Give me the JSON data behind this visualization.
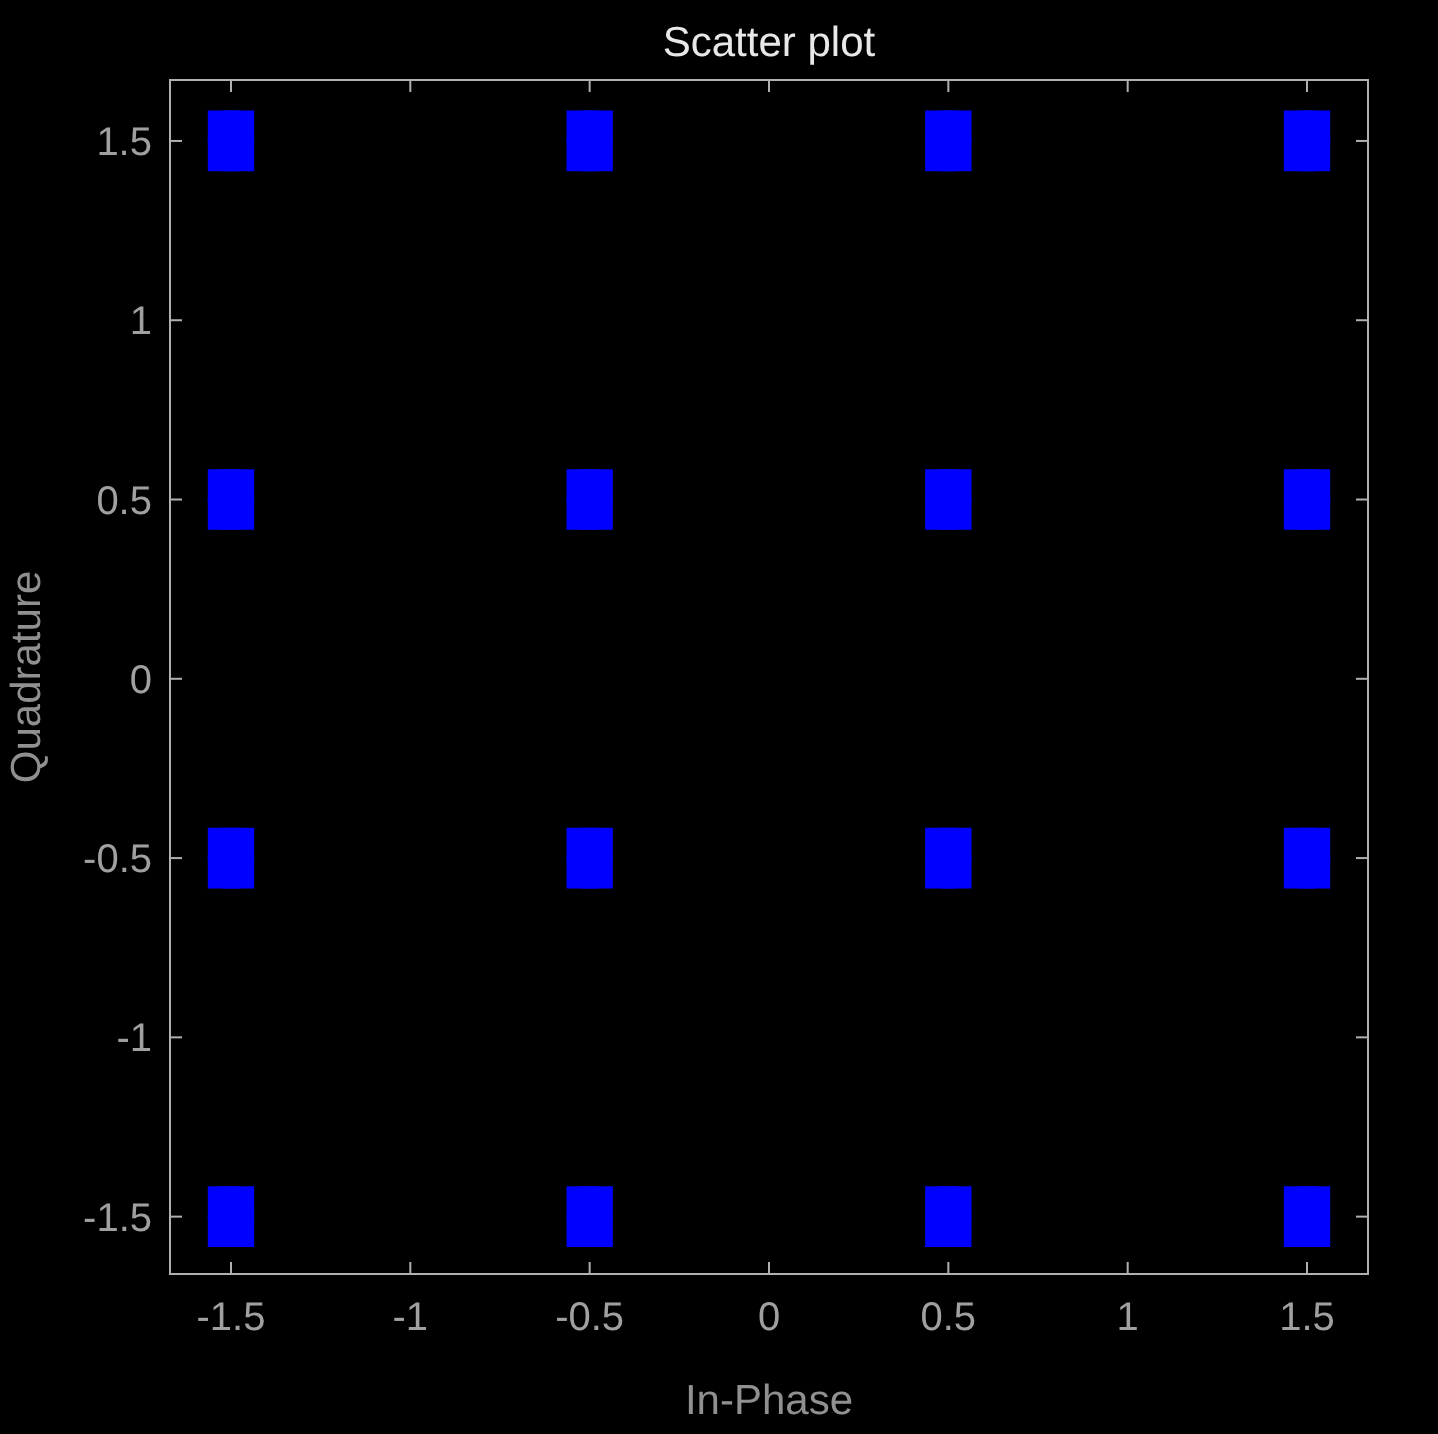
{
  "chart_data": {
    "type": "scatter",
    "title": "Scatter plot",
    "xlabel": "In-Phase",
    "ylabel": "Quadrature",
    "xlim": [
      -1.67,
      1.67
    ],
    "ylim": [
      -1.66,
      1.67
    ],
    "xticks": [
      -1.5,
      -1,
      -0.5,
      0,
      0.5,
      1,
      1.5
    ],
    "yticks": [
      -1.5,
      -1,
      -0.5,
      0,
      0.5,
      1,
      1.5
    ],
    "grid": false,
    "marker": "square",
    "series": [
      {
        "color": "#0000ff",
        "x": [
          -1.52,
          -1.48,
          -1.52,
          -1.48,
          -0.52,
          -0.48,
          -0.52,
          -0.48,
          0.48,
          0.52,
          0.48,
          0.52,
          1.48,
          1.52,
          1.48,
          1.52,
          -1.52,
          -1.48,
          -1.52,
          -1.48,
          -0.52,
          -0.48,
          -0.52,
          -0.48,
          0.48,
          0.52,
          0.48,
          0.52,
          1.48,
          1.52,
          1.48,
          1.52,
          -1.52,
          -1.48,
          -1.52,
          -1.48,
          -0.52,
          -0.48,
          -0.52,
          -0.48,
          0.48,
          0.52,
          0.48,
          0.52,
          1.48,
          1.52,
          1.48,
          1.52,
          -1.52,
          -1.48,
          -1.52,
          -1.48,
          -0.52,
          -0.48,
          -0.52,
          -0.48,
          0.48,
          0.52,
          0.48,
          0.52,
          1.48,
          1.52,
          1.48,
          1.52
        ],
        "values": [
          1.46,
          1.46,
          1.54,
          1.54,
          1.46,
          1.46,
          1.54,
          1.54,
          1.46,
          1.46,
          1.54,
          1.54,
          1.46,
          1.46,
          1.54,
          1.54,
          0.46,
          0.46,
          0.54,
          0.54,
          0.46,
          0.46,
          0.54,
          0.54,
          0.46,
          0.46,
          0.54,
          0.54,
          0.46,
          0.46,
          0.54,
          0.54,
          -0.54,
          -0.54,
          -0.46,
          -0.46,
          -0.54,
          -0.54,
          -0.46,
          -0.46,
          -0.54,
          -0.54,
          -0.46,
          -0.46,
          -0.54,
          -0.54,
          -0.46,
          -0.46,
          -1.54,
          -1.54,
          -1.46,
          -1.46,
          -1.54,
          -1.54,
          -1.46,
          -1.46,
          -1.54,
          -1.54,
          -1.46,
          -1.46,
          -1.54,
          -1.54,
          -1.46,
          -1.46
        ]
      }
    ]
  }
}
